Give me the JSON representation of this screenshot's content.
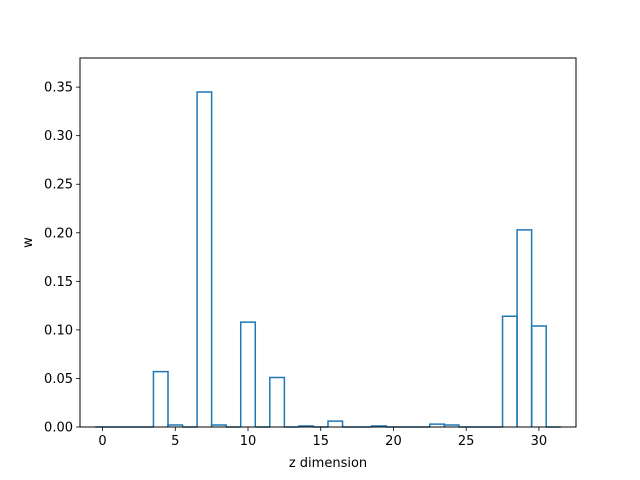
{
  "chart_data": {
    "type": "bar",
    "style": "step",
    "xlabel": "z dimension",
    "ylabel": "w",
    "xlim": [
      -1.55,
      32.55
    ],
    "ylim": [
      0,
      0.38
    ],
    "xticks": [
      0,
      5,
      10,
      15,
      20,
      25,
      30
    ],
    "xtick_labels": [
      "0",
      "5",
      "10",
      "15",
      "20",
      "25",
      "30"
    ],
    "yticks": [
      0.0,
      0.05,
      0.1,
      0.15,
      0.2,
      0.25,
      0.3,
      0.35
    ],
    "ytick_labels": [
      "0.00",
      "0.05",
      "0.10",
      "0.15",
      "0.20",
      "0.25",
      "0.30",
      "0.35"
    ],
    "grid": false,
    "color": "#1f77b4",
    "x": [
      0,
      1,
      2,
      3,
      4,
      5,
      6,
      7,
      8,
      9,
      10,
      11,
      12,
      13,
      14,
      15,
      16,
      17,
      18,
      19,
      20,
      21,
      22,
      23,
      24,
      25,
      26,
      27,
      28,
      29,
      30,
      31
    ],
    "values": [
      0.0,
      0.0,
      0.0,
      0.0,
      0.057,
      0.002,
      0.0,
      0.345,
      0.002,
      0.0,
      0.108,
      0.0,
      0.051,
      0.0,
      0.001,
      0.0,
      0.006,
      0.0,
      0.0,
      0.001,
      0.0,
      0.0,
      0.0,
      0.003,
      0.002,
      0.0,
      0.0,
      0.0,
      0.114,
      0.203,
      0.104,
      0.0
    ]
  }
}
